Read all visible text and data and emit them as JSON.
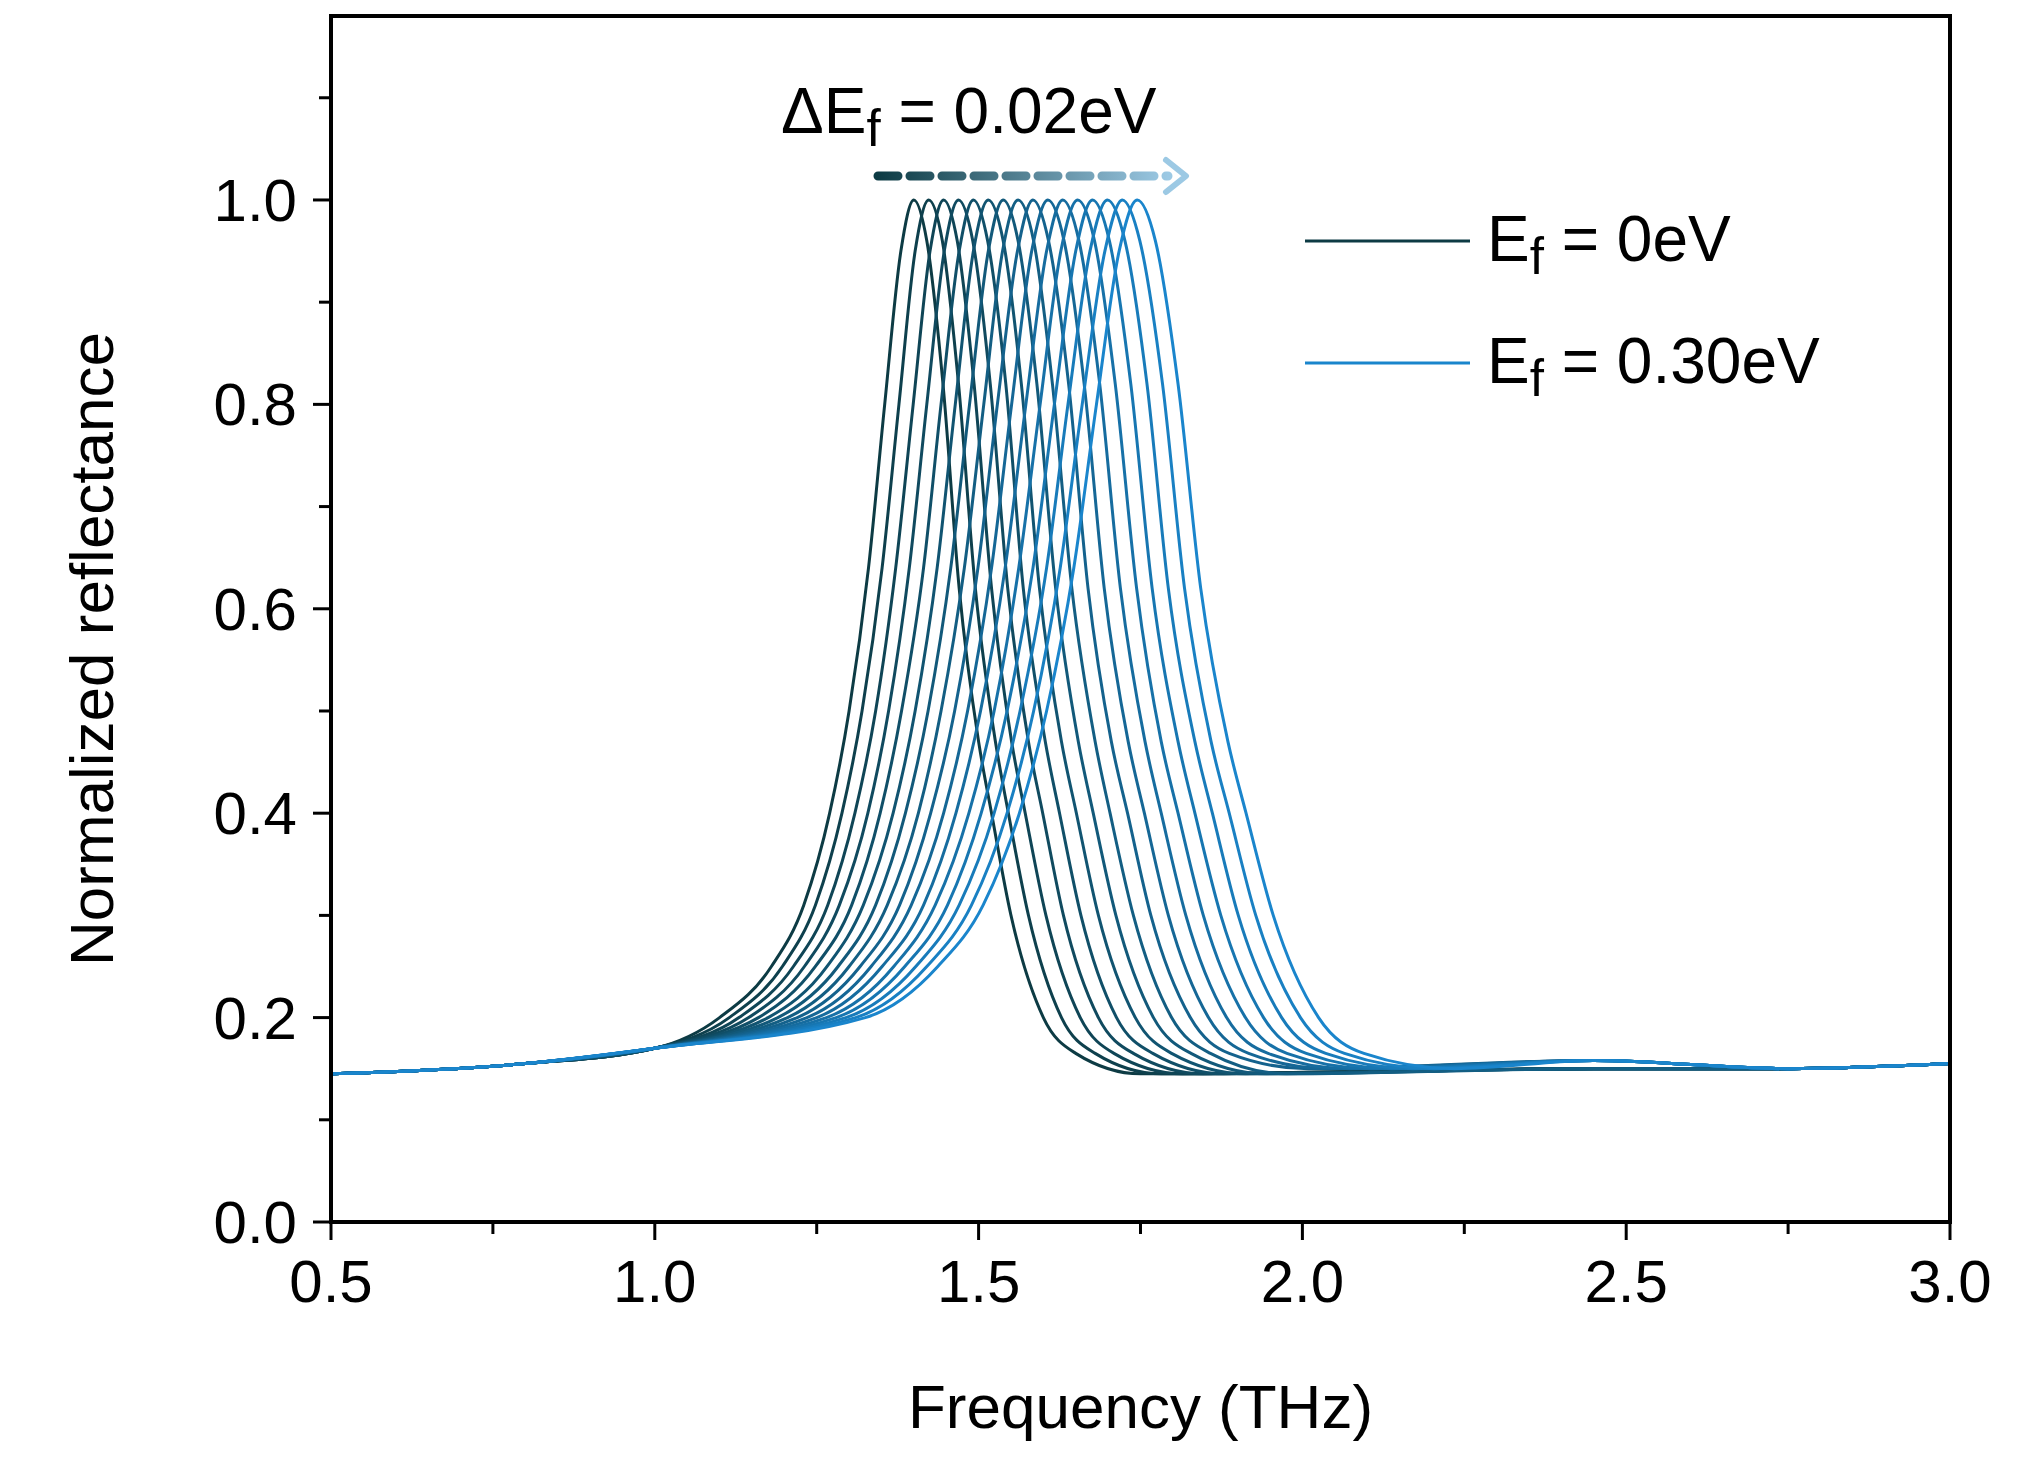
{
  "chart_data": {
    "type": "line",
    "xlabel": "Frequency (THz)",
    "ylabel": "Normalized reflectance",
    "annotations": [
      "ΔE$_{f}$ = 0.02eV"
    ],
    "legend": "top right",
    "xlim": [
      0.5,
      3.0
    ],
    "ylim": [
      0,
      1.18
    ],
    "xticks": [
      0.5,
      {
        "value": 0.75,
        "label": null
      },
      {
        "value": 1,
        "label": "1.0"
      },
      {
        "value": 1.25,
        "label": null
      },
      1.5,
      {
        "value": 1.75,
        "label": null
      },
      {
        "value": 2,
        "label": "2.0"
      },
      {
        "value": 2.25,
        "label": null
      },
      2.5,
      {
        "value": 2.75,
        "label": null
      },
      {
        "value": 3,
        "label": "3.0"
      }
    ],
    "yticks": [
      {
        "value": 0,
        "label": "0.0"
      },
      {
        "value": 0.1,
        "label": null
      },
      0.2,
      {
        "value": 0.3,
        "label": null
      },
      0.4,
      {
        "value": 0.5,
        "label": null
      },
      0.6,
      {
        "value": 0.7,
        "label": null
      },
      0.8,
      {
        "value": 0.9,
        "label": null
      },
      {
        "value": 1,
        "label": "1.0"
      },
      {
        "value": 1.1,
        "label": null
      }
    ],
    "series": [
      {
        "name": "E$_{f}$ = 0eV",
        "color": "#0d3b44",
        "x": [
          0.5,
          0.8,
          1.0,
          1.1,
          1.18,
          1.23,
          1.27,
          1.3,
          1.33,
          1.355,
          1.38,
          1.4,
          1.42,
          1.445,
          1.47,
          1.5,
          1.52,
          1.55,
          1.6,
          1.65,
          1.75,
          2.45,
          2.75,
          3.0
        ],
        "values": [
          0.145,
          0.155,
          0.17,
          0.2,
          0.25,
          0.31,
          0.4,
          0.5,
          0.64,
          0.8,
          0.95,
          1.0,
          0.96,
          0.82,
          0.62,
          0.47,
          0.4,
          0.3,
          0.2,
          0.165,
          0.145,
          0.15,
          0.15,
          0.155
        ]
      },
      {
        "color": "#0e404d",
        "x": [
          0.5,
          0.8,
          1.0,
          1.115,
          1.197,
          1.248,
          1.289,
          1.32,
          1.351,
          1.377,
          1.402,
          1.423,
          1.444,
          1.469,
          1.495,
          1.526,
          1.546,
          1.577,
          1.628,
          1.68,
          1.782,
          2.45,
          2.75,
          3.0
        ],
        "values": [
          0.145,
          0.155,
          0.17,
          0.2,
          0.25,
          0.31,
          0.4,
          0.5,
          0.64,
          0.8,
          0.95,
          1.0,
          0.96,
          0.82,
          0.62,
          0.47,
          0.4,
          0.3,
          0.2,
          0.165,
          0.145,
          0.15,
          0.15,
          0.155
        ]
      },
      {
        "color": "#0f4556",
        "x": [
          0.5,
          0.8,
          1.0,
          1.13,
          1.214,
          1.267,
          1.309,
          1.341,
          1.372,
          1.399,
          1.425,
          1.446,
          1.467,
          1.493,
          1.52,
          1.551,
          1.572,
          1.604,
          1.657,
          1.709,
          1.815,
          2.45,
          2.75,
          3.0
        ],
        "values": [
          0.145,
          0.155,
          0.17,
          0.2,
          0.25,
          0.31,
          0.4,
          0.5,
          0.64,
          0.8,
          0.95,
          1.0,
          0.96,
          0.82,
          0.62,
          0.47,
          0.4,
          0.3,
          0.2,
          0.165,
          0.145,
          0.15,
          0.15,
          0.155
        ]
      },
      {
        "color": "#104a5f",
        "x": [
          0.5,
          0.8,
          1.0,
          1.145,
          1.231,
          1.285,
          1.329,
          1.361,
          1.393,
          1.42,
          1.447,
          1.469,
          1.491,
          1.518,
          1.545,
          1.577,
          1.599,
          1.631,
          1.685,
          1.739,
          1.847,
          2.45,
          2.75,
          3.0
        ],
        "values": [
          0.145,
          0.155,
          0.17,
          0.2,
          0.25,
          0.31,
          0.4,
          0.5,
          0.64,
          0.8,
          0.95,
          1.0,
          0.96,
          0.82,
          0.62,
          0.47,
          0.4,
          0.3,
          0.2,
          0.165,
          0.145,
          0.15,
          0.15,
          0.155
        ]
      },
      {
        "color": "#104f68",
        "x": [
          0.5,
          0.8,
          1.0,
          1.16,
          1.248,
          1.304,
          1.348,
          1.381,
          1.415,
          1.442,
          1.47,
          1.492,
          1.514,
          1.542,
          1.569,
          1.603,
          1.625,
          1.658,
          1.713,
          1.769,
          1.879,
          2.45,
          2.75,
          3.0
        ],
        "values": [
          0.145,
          0.155,
          0.17,
          0.2,
          0.25,
          0.31,
          0.4,
          0.5,
          0.64,
          0.8,
          0.95,
          1.0,
          0.96,
          0.82,
          0.62,
          0.47,
          0.4,
          0.3,
          0.2,
          0.165,
          0.145,
          0.15,
          0.15,
          0.155
        ]
      },
      {
        "color": "#115471",
        "x": [
          0.5,
          0.8,
          1.0,
          1.175,
          1.266,
          1.322,
          1.368,
          1.402,
          1.436,
          1.464,
          1.492,
          1.515,
          1.538,
          1.566,
          1.594,
          1.628,
          1.651,
          1.685,
          1.742,
          1.798,
          1.912,
          2.45,
          2.75,
          3.0
        ],
        "values": [
          0.145,
          0.155,
          0.17,
          0.2,
          0.25,
          0.31,
          0.4,
          0.5,
          0.64,
          0.8,
          0.95,
          1.0,
          0.96,
          0.82,
          0.62,
          0.47,
          0.4,
          0.3,
          0.2,
          0.165,
          0.145,
          0.15,
          0.15,
          0.155
        ]
      },
      {
        "color": "#12597a",
        "x": [
          0.5,
          0.8,
          1.0,
          1.19,
          1.283,
          1.341,
          1.387,
          1.422,
          1.457,
          1.486,
          1.515,
          1.538,
          1.561,
          1.59,
          1.619,
          1.654,
          1.677,
          1.712,
          1.77,
          1.828,
          1.944,
          2.45,
          2.75,
          3.0
        ],
        "values": [
          0.145,
          0.155,
          0.17,
          0.2,
          0.25,
          0.31,
          0.4,
          0.5,
          0.64,
          0.8,
          0.95,
          1.0,
          0.96,
          0.82,
          0.62,
          0.47,
          0.4,
          0.3,
          0.2,
          0.165,
          0.145,
          0.15,
          0.15,
          0.155
        ]
      },
      {
        "color": "#135e83",
        "x": [
          0.5,
          0.8,
          1.0,
          1.205,
          1.3,
          1.359,
          1.407,
          1.442,
          1.478,
          1.508,
          1.537,
          1.561,
          1.585,
          1.614,
          1.644,
          1.68,
          1.703,
          1.739,
          1.798,
          1.858,
          1.976,
          2.45,
          2.75,
          3.0
        ],
        "values": [
          0.145,
          0.155,
          0.17,
          0.2,
          0.25,
          0.31,
          0.4,
          0.5,
          0.64,
          0.8,
          0.95,
          1.0,
          0.96,
          0.82,
          0.62,
          0.47,
          0.4,
          0.3,
          0.2,
          0.165,
          0.145,
          0.15,
          0.15,
          0.155
        ]
      },
      {
        "color": "#14628d",
        "x": [
          0.5,
          0.8,
          1.0,
          1.22,
          1.317,
          1.378,
          1.426,
          1.463,
          1.499,
          1.529,
          1.56,
          1.584,
          1.608,
          1.639,
          1.669,
          1.705,
          1.73,
          1.766,
          1.827,
          1.887,
          2.009,
          2.45,
          2.75,
          3.0
        ],
        "values": [
          0.145,
          0.155,
          0.17,
          0.2,
          0.25,
          0.31,
          0.4,
          0.5,
          0.64,
          0.8,
          0.95,
          1.0,
          0.96,
          0.82,
          0.62,
          0.47,
          0.4,
          0.3,
          0.2,
          0.165,
          0.15,
          0.158,
          0.15,
          0.155
        ]
      },
      {
        "color": "#156796",
        "x": [
          0.5,
          0.8,
          1.0,
          1.235,
          1.334,
          1.396,
          1.446,
          1.483,
          1.52,
          1.551,
          1.582,
          1.607,
          1.632,
          1.663,
          1.694,
          1.731,
          1.756,
          1.793,
          1.855,
          1.917,
          2.041,
          2.45,
          2.75,
          3.0
        ],
        "values": [
          0.145,
          0.155,
          0.17,
          0.2,
          0.25,
          0.31,
          0.4,
          0.5,
          0.64,
          0.8,
          0.95,
          1.0,
          0.96,
          0.82,
          0.62,
          0.47,
          0.4,
          0.3,
          0.2,
          0.165,
          0.15,
          0.158,
          0.15,
          0.155
        ]
      },
      {
        "color": "#166c9f",
        "x": [
          0.5,
          0.8,
          1.0,
          1.25,
          1.351,
          1.415,
          1.465,
          1.503,
          1.541,
          1.573,
          1.605,
          1.63,
          1.655,
          1.687,
          1.719,
          1.757,
          1.782,
          1.82,
          1.883,
          1.947,
          2.073,
          2.45,
          2.75,
          3.0
        ],
        "values": [
          0.145,
          0.155,
          0.17,
          0.2,
          0.25,
          0.31,
          0.4,
          0.5,
          0.64,
          0.8,
          0.95,
          1.0,
          0.96,
          0.82,
          0.62,
          0.47,
          0.4,
          0.3,
          0.2,
          0.165,
          0.15,
          0.158,
          0.15,
          0.155
        ]
      },
      {
        "color": "#1771a8",
        "x": [
          0.5,
          0.8,
          1.0,
          1.265,
          1.369,
          1.433,
          1.485,
          1.524,
          1.562,
          1.595,
          1.627,
          1.653,
          1.679,
          1.711,
          1.744,
          1.782,
          1.808,
          1.847,
          1.912,
          1.976,
          2.106,
          2.45,
          2.75,
          3.0
        ],
        "values": [
          0.145,
          0.155,
          0.17,
          0.2,
          0.25,
          0.31,
          0.4,
          0.5,
          0.64,
          0.8,
          0.95,
          1.0,
          0.96,
          0.82,
          0.62,
          0.47,
          0.4,
          0.3,
          0.2,
          0.165,
          0.15,
          0.158,
          0.15,
          0.155
        ]
      },
      {
        "color": "#1776b1",
        "x": [
          0.5,
          0.8,
          1.0,
          1.28,
          1.386,
          1.452,
          1.504,
          1.544,
          1.584,
          1.617,
          1.65,
          1.676,
          1.702,
          1.735,
          1.768,
          1.808,
          1.834,
          1.874,
          1.94,
          2.006,
          2.138,
          2.45,
          2.75,
          3.0
        ],
        "values": [
          0.145,
          0.155,
          0.17,
          0.2,
          0.25,
          0.31,
          0.4,
          0.5,
          0.64,
          0.8,
          0.95,
          1.0,
          0.96,
          0.82,
          0.62,
          0.47,
          0.4,
          0.3,
          0.2,
          0.165,
          0.15,
          0.158,
          0.15,
          0.155
        ]
      },
      {
        "color": "#187bba",
        "x": [
          0.5,
          0.8,
          1.0,
          1.295,
          1.403,
          1.47,
          1.524,
          1.564,
          1.605,
          1.638,
          1.672,
          1.699,
          1.726,
          1.76,
          1.793,
          1.834,
          1.861,
          1.901,
          1.968,
          2.036,
          2.17,
          2.45,
          2.75,
          3.0
        ],
        "values": [
          0.145,
          0.155,
          0.17,
          0.2,
          0.25,
          0.31,
          0.4,
          0.5,
          0.64,
          0.8,
          0.95,
          1.0,
          0.96,
          0.82,
          0.62,
          0.47,
          0.4,
          0.3,
          0.2,
          0.165,
          0.15,
          0.158,
          0.15,
          0.155
        ]
      },
      {
        "color": "#1980c3",
        "x": [
          0.5,
          0.8,
          1.0,
          1.31,
          1.42,
          1.489,
          1.544,
          1.585,
          1.626,
          1.66,
          1.695,
          1.722,
          1.749,
          1.784,
          1.818,
          1.859,
          1.887,
          1.928,
          1.997,
          2.065,
          2.203,
          2.45,
          2.75,
          3.0
        ],
        "values": [
          0.145,
          0.155,
          0.17,
          0.2,
          0.25,
          0.31,
          0.4,
          0.5,
          0.64,
          0.8,
          0.95,
          1.0,
          0.96,
          0.82,
          0.62,
          0.47,
          0.4,
          0.3,
          0.2,
          0.165,
          0.15,
          0.158,
          0.15,
          0.155
        ]
      },
      {
        "name": "E$_{f}$ = 0.30eV",
        "color": "#1a85cc",
        "x": [
          0.5,
          0.8,
          1.0,
          1.325,
          1.437,
          1.507,
          1.563,
          1.605,
          1.647,
          1.682,
          1.717,
          1.745,
          1.773,
          1.808,
          1.843,
          1.885,
          1.913,
          1.955,
          2.025,
          2.095,
          2.235,
          2.45,
          2.75,
          3.0
        ],
        "values": [
          0.145,
          0.155,
          0.17,
          0.2,
          0.25,
          0.31,
          0.4,
          0.5,
          0.64,
          0.8,
          0.95,
          1.0,
          0.96,
          0.82,
          0.62,
          0.47,
          0.4,
          0.3,
          0.2,
          0.165,
          0.15,
          0.158,
          0.15,
          0.155
        ]
      }
    ]
  }
}
